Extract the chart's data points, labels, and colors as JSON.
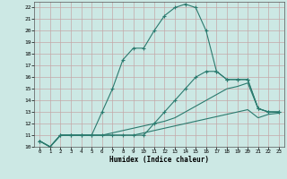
{
  "xlabel": "Humidex (Indice chaleur)",
  "bg_color": "#cce8e4",
  "grid_color": "#c4a8a8",
  "line_color": "#2a7a6e",
  "xlim": [
    -0.5,
    23.5
  ],
  "ylim": [
    10,
    22.5
  ],
  "xticks": [
    0,
    1,
    2,
    3,
    4,
    5,
    6,
    7,
    8,
    9,
    10,
    11,
    12,
    13,
    14,
    15,
    16,
    17,
    18,
    19,
    20,
    21,
    22,
    23
  ],
  "yticks": [
    10,
    11,
    12,
    13,
    14,
    15,
    16,
    17,
    18,
    19,
    20,
    21,
    22
  ],
  "curve1_x": [
    0,
    1,
    2,
    3,
    4,
    5,
    6,
    7,
    8,
    9,
    10,
    11,
    12,
    13,
    14,
    15,
    16,
    17,
    18,
    19,
    20,
    21,
    22,
    23
  ],
  "curve1_y": [
    10.5,
    10.0,
    11.0,
    11.0,
    11.0,
    11.0,
    13.0,
    15.0,
    17.5,
    18.5,
    18.5,
    20.0,
    21.3,
    22.0,
    22.3,
    22.0,
    20.0,
    16.5,
    15.8,
    15.8,
    15.8,
    13.3,
    13.0,
    13.0
  ],
  "curve2_x": [
    0,
    1,
    2,
    3,
    4,
    5,
    6,
    7,
    8,
    9,
    10,
    11,
    12,
    13,
    14,
    15,
    16,
    17,
    18,
    19,
    20,
    21,
    22,
    23
  ],
  "curve2_y": [
    10.5,
    10.0,
    11.0,
    11.0,
    11.0,
    11.0,
    11.0,
    11.0,
    11.0,
    11.0,
    11.0,
    12.0,
    13.0,
    14.0,
    15.0,
    16.0,
    16.5,
    16.5,
    15.8,
    15.8,
    15.8,
    13.3,
    13.0,
    13.0
  ],
  "curve3_x": [
    0,
    1,
    2,
    3,
    4,
    5,
    6,
    7,
    8,
    9,
    10,
    11,
    12,
    13,
    14,
    15,
    16,
    17,
    18,
    19,
    20,
    21,
    22,
    23
  ],
  "curve3_y": [
    10.5,
    10.0,
    11.0,
    11.0,
    11.0,
    11.0,
    11.0,
    11.2,
    11.4,
    11.6,
    11.8,
    12.0,
    12.2,
    12.5,
    13.0,
    13.5,
    14.0,
    14.5,
    15.0,
    15.2,
    15.5,
    13.3,
    13.0,
    13.0
  ],
  "curve4_x": [
    0,
    1,
    2,
    3,
    4,
    5,
    6,
    7,
    8,
    9,
    10,
    11,
    12,
    13,
    14,
    15,
    16,
    17,
    18,
    19,
    20,
    21,
    22,
    23
  ],
  "curve4_y": [
    10.5,
    10.0,
    11.0,
    11.0,
    11.0,
    11.0,
    11.0,
    11.0,
    11.0,
    11.0,
    11.2,
    11.4,
    11.6,
    11.8,
    12.0,
    12.2,
    12.4,
    12.6,
    12.8,
    13.0,
    13.2,
    12.5,
    12.8,
    12.9
  ]
}
